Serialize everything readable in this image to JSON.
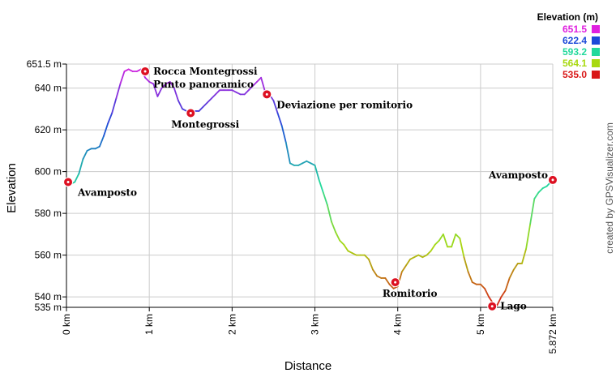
{
  "chart_data": {
    "type": "line",
    "xlabel": "Distance",
    "ylabel": "Elevation",
    "xlim": [
      0,
      5.872
    ],
    "ylim": [
      535,
      651.5
    ],
    "x_ticks": [
      {
        "value": 0,
        "label": "0 km"
      },
      {
        "value": 1,
        "label": "1 km"
      },
      {
        "value": 2,
        "label": "2 km"
      },
      {
        "value": 3,
        "label": "3 km"
      },
      {
        "value": 4,
        "label": "4 km"
      },
      {
        "value": 5,
        "label": "5 km"
      },
      {
        "value": 5.872,
        "label": "5.872 km"
      }
    ],
    "y_ticks": [
      {
        "value": 535,
        "label": "535 m"
      },
      {
        "value": 540,
        "label": "540 m"
      },
      {
        "value": 560,
        "label": "560 m"
      },
      {
        "value": 580,
        "label": "580 m"
      },
      {
        "value": 600,
        "label": "600 m"
      },
      {
        "value": 620,
        "label": "620 m"
      },
      {
        "value": 640,
        "label": "640 m"
      },
      {
        "value": 651.5,
        "label": "651.5 m"
      }
    ],
    "grid": true,
    "legend": {
      "title": "Elevation (m)",
      "placement": "top-right",
      "entries": [
        {
          "label": "651.5",
          "color": "#e020e0"
        },
        {
          "label": "622.4",
          "color": "#1c49d9"
        },
        {
          "label": "593.2",
          "color": "#22d99c"
        },
        {
          "label": "564.1",
          "color": "#a8d910"
        },
        {
          "label": "535.0",
          "color": "#d91818"
        }
      ]
    },
    "series": [
      {
        "x": [
          0,
          0.05,
          0.1,
          0.15,
          0.2,
          0.25,
          0.3,
          0.35,
          0.4,
          0.45,
          0.5,
          0.55,
          0.6,
          0.65,
          0.7,
          0.75,
          0.8,
          0.85,
          0.9,
          0.95,
          1.0,
          1.05,
          1.1,
          1.15,
          1.2,
          1.25,
          1.3,
          1.35,
          1.4,
          1.45,
          1.5,
          1.55,
          1.6,
          1.65,
          1.7,
          1.75,
          1.8,
          1.85,
          1.9,
          1.95,
          2.0,
          2.05,
          2.1,
          2.15,
          2.2,
          2.25,
          2.3,
          2.35,
          2.4,
          2.45,
          2.5,
          2.55,
          2.6,
          2.65,
          2.7,
          2.75,
          2.8,
          2.85,
          2.9,
          2.95,
          3.0,
          3.05,
          3.1,
          3.15,
          3.2,
          3.25,
          3.3,
          3.35,
          3.4,
          3.45,
          3.5,
          3.55,
          3.6,
          3.65,
          3.7,
          3.75,
          3.8,
          3.85,
          3.9,
          3.95,
          4.0,
          4.05,
          4.1,
          4.15,
          4.2,
          4.25,
          4.3,
          4.35,
          4.4,
          4.45,
          4.5,
          4.55,
          4.6,
          4.65,
          4.7,
          4.75,
          4.8,
          4.85,
          4.9,
          4.95,
          5.0,
          5.05,
          5.1,
          5.15,
          5.2,
          5.25,
          5.3,
          5.35,
          5.4,
          5.45,
          5.5,
          5.55,
          5.6,
          5.65,
          5.7,
          5.75,
          5.8,
          5.872
        ],
        "y": [
          595,
          594,
          595,
          599,
          606,
          610,
          611,
          611,
          612,
          617,
          623,
          628,
          635,
          642,
          648,
          649,
          648,
          648,
          649,
          645,
          643,
          642,
          636,
          640,
          642,
          643,
          640,
          634,
          630,
          629,
          628,
          629,
          629,
          631,
          633,
          635,
          637,
          639,
          639,
          639,
          639,
          638,
          637,
          637,
          639,
          641,
          643,
          645,
          638,
          637,
          634,
          628,
          622,
          614,
          604,
          603,
          603,
          604,
          605,
          604,
          603,
          596,
          590,
          584,
          576,
          571,
          567,
          565,
          562,
          561,
          560,
          560,
          560,
          558,
          553,
          550,
          549,
          549,
          546,
          544,
          545,
          552,
          555,
          558,
          559,
          560,
          559,
          560,
          562,
          565,
          567,
          570,
          564,
          564,
          570,
          568,
          559,
          552,
          547,
          546,
          546,
          544,
          540,
          537,
          536,
          540,
          543,
          549,
          553,
          556,
          556,
          563,
          575,
          587,
          590,
          592,
          593,
          596
        ]
      }
    ],
    "waypoints": [
      {
        "x": 0.02,
        "y": 595,
        "label": "Avamposto",
        "label_pos": "below-right"
      },
      {
        "x": 0.95,
        "y": 648,
        "label": "Rocca Montegrossi",
        "label_pos": "right"
      },
      {
        "x": 1.5,
        "y": 628,
        "label": "Montegrossi",
        "label_pos": "below"
      },
      {
        "x": 2.42,
        "y": 637,
        "label": "Deviazione per romitorio",
        "label_pos": "below-right"
      },
      {
        "x": 3.97,
        "y": 547,
        "label": "Romitorio",
        "label_pos": "below"
      },
      {
        "x": 5.14,
        "y": 535.5,
        "label": "Lago",
        "label_pos": "right"
      },
      {
        "x": 5.872,
        "y": 596,
        "label": "Avamposto",
        "label_pos": "left"
      }
    ],
    "annotations": [
      {
        "x": 0.95,
        "y": 648,
        "text": "Punto panoramico"
      }
    ]
  },
  "credit_text": "created by GPSVisualizer.com"
}
